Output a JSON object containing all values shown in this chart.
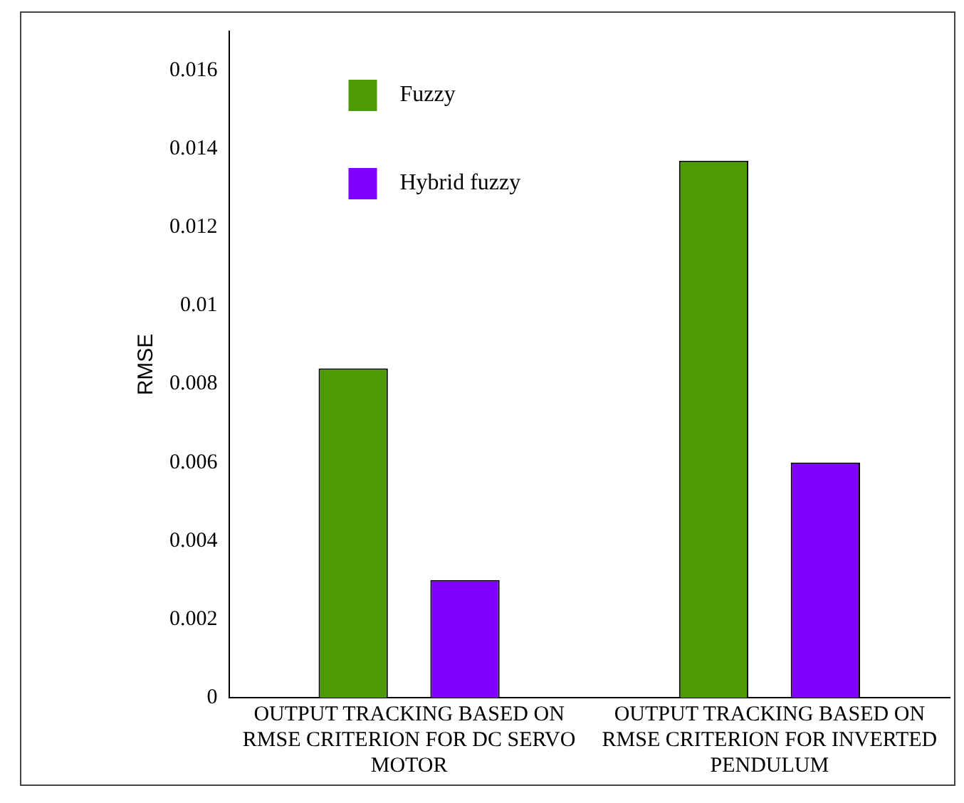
{
  "chart_data": {
    "type": "bar",
    "ylabel": "RMSE",
    "categories": [
      "OUTPUT TRACKING BASED ON RMSE CRITERION FOR DC SERVO MOTOR",
      "OUTPUT TRACKING BASED ON RMSE CRITERION FOR INVERTED PENDULUM"
    ],
    "series": [
      {
        "name": "Fuzzy",
        "color": "#4e9a06",
        "values": [
          0.0084,
          0.0137
        ]
      },
      {
        "name": "Hybrid fuzzy",
        "color": "#8000ff",
        "values": [
          0.003,
          0.006
        ]
      }
    ],
    "ylim": [
      0,
      0.017
    ],
    "yticks": [
      0,
      0.002,
      0.004,
      0.006,
      0.008,
      0.01,
      0.012,
      0.014,
      0.016
    ],
    "grid": false,
    "legend": "top left"
  }
}
